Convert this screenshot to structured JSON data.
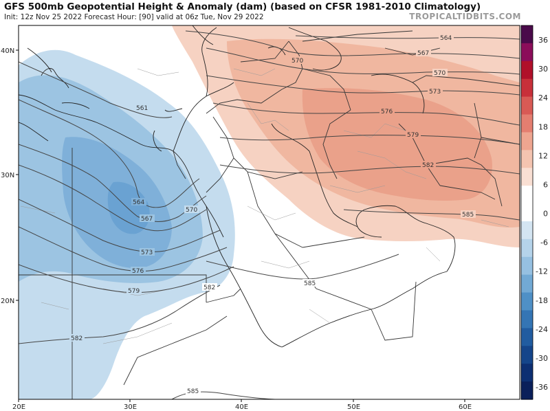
{
  "header": {
    "title": "GFS 500mb Geopotential Height & Anomaly (dam) (based on CFSR 1981-2010 Climatology)",
    "subtitle": "Init: 12z Nov 25 2022   Forecast Hour: [90]   valid at 06z Tue, Nov 29 2022",
    "brand": "TROPICALTIDBITS.COM"
  },
  "axes": {
    "lon_labels": [
      "20E",
      "30E",
      "40E",
      "50E",
      "60E"
    ],
    "lat_labels": [
      "40N",
      "30N",
      "20N"
    ]
  },
  "colorbar": {
    "ticks": [
      "36",
      "30",
      "24",
      "18",
      "12",
      "6",
      "0",
      "-6",
      "-12",
      "-18",
      "-24",
      "-30",
      "-36"
    ],
    "colors": [
      "#4a0a4a",
      "#8b0d5a",
      "#b0102a",
      "#c8303a",
      "#d85a55",
      "#e47e70",
      "#eea590",
      "#f4c4b0",
      "#f9dfd3",
      "#ffffff",
      "#ffffff",
      "#d4e5f2",
      "#b5d3ea",
      "#96c0e1",
      "#72a9d4",
      "#4f90c6",
      "#3475b4",
      "#215ca0",
      "#15458a",
      "#0d2f72",
      "#0a1f5a"
    ]
  },
  "contour_labels": [
    "561",
    "564",
    "564",
    "567",
    "567",
    "570",
    "570",
    "570",
    "573",
    "573",
    "576",
    "576",
    "579",
    "579",
    "582",
    "582",
    "582",
    "585",
    "585",
    "585"
  ]
}
